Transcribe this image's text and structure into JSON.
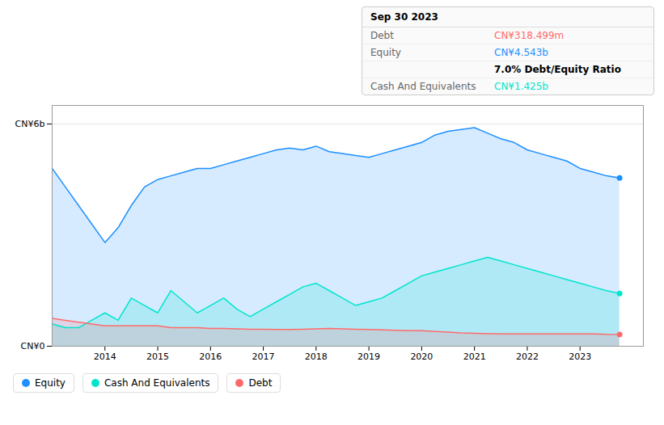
{
  "chart_data": {
    "type": "area",
    "title": "Sep 30 2023",
    "x": [
      2013.0,
      2013.25,
      2013.5,
      2013.75,
      2014.0,
      2014.25,
      2014.5,
      2014.75,
      2015.0,
      2015.25,
      2015.5,
      2015.75,
      2016.0,
      2016.25,
      2016.5,
      2016.75,
      2017.0,
      2017.25,
      2017.5,
      2017.75,
      2018.0,
      2018.25,
      2018.5,
      2018.75,
      2019.0,
      2019.25,
      2019.5,
      2019.75,
      2020.0,
      2020.25,
      2020.5,
      2020.75,
      2021.0,
      2021.25,
      2021.5,
      2021.75,
      2022.0,
      2022.25,
      2022.5,
      2022.75,
      2023.0,
      2023.25,
      2023.5,
      2023.75
    ],
    "series": [
      {
        "name": "Equity",
        "color": "#1e90ff",
        "values": [
          4.8,
          4.3,
          3.8,
          3.3,
          2.8,
          3.2,
          3.8,
          4.3,
          4.5,
          4.6,
          4.7,
          4.8,
          4.8,
          4.9,
          5.0,
          5.1,
          5.2,
          5.3,
          5.35,
          5.3,
          5.4,
          5.25,
          5.2,
          5.15,
          5.1,
          5.2,
          5.3,
          5.4,
          5.5,
          5.7,
          5.8,
          5.85,
          5.9,
          5.75,
          5.6,
          5.5,
          5.3,
          5.2,
          5.1,
          5.0,
          4.8,
          4.7,
          4.6,
          4.543
        ]
      },
      {
        "name": "Cash And Equivalents",
        "color": "#00e5cc",
        "values": [
          0.6,
          0.5,
          0.5,
          0.7,
          0.9,
          0.7,
          1.3,
          1.1,
          0.9,
          1.5,
          1.2,
          0.9,
          1.1,
          1.3,
          1.0,
          0.8,
          1.0,
          1.2,
          1.4,
          1.6,
          1.7,
          1.5,
          1.3,
          1.1,
          1.2,
          1.3,
          1.5,
          1.7,
          1.9,
          2.0,
          2.1,
          2.2,
          2.3,
          2.4,
          2.3,
          2.2,
          2.1,
          2.0,
          1.9,
          1.8,
          1.7,
          1.6,
          1.5,
          1.425
        ]
      },
      {
        "name": "Debt",
        "color": "#ff6b6b",
        "values": [
          0.75,
          0.7,
          0.65,
          0.6,
          0.55,
          0.55,
          0.55,
          0.55,
          0.55,
          0.5,
          0.5,
          0.5,
          0.48,
          0.48,
          0.47,
          0.46,
          0.46,
          0.45,
          0.45,
          0.46,
          0.47,
          0.48,
          0.47,
          0.46,
          0.45,
          0.44,
          0.43,
          0.42,
          0.42,
          0.4,
          0.38,
          0.36,
          0.35,
          0.34,
          0.33,
          0.33,
          0.33,
          0.33,
          0.33,
          0.33,
          0.33,
          0.33,
          0.32,
          0.3185
        ]
      }
    ],
    "xlim": [
      2013.0,
      2024.2
    ],
    "xticks": [
      2014,
      2015,
      2016,
      2017,
      2018,
      2019,
      2020,
      2021,
      2022,
      2023
    ],
    "ylim": [
      0,
      6.5
    ],
    "yticks": [
      {
        "value": 0,
        "label": "CN¥0"
      },
      {
        "value": 6,
        "label": "CN¥6b"
      }
    ],
    "grid": true,
    "annotations": [
      {
        "label": "Debt",
        "text": "CN¥318.499m"
      },
      {
        "label": "Equity",
        "text": "CN¥4.543b"
      },
      {
        "text": "7.0% Debt/Equity Ratio"
      },
      {
        "label": "Cash And Equivalents",
        "text": "CN¥1.425b"
      }
    ]
  }
}
